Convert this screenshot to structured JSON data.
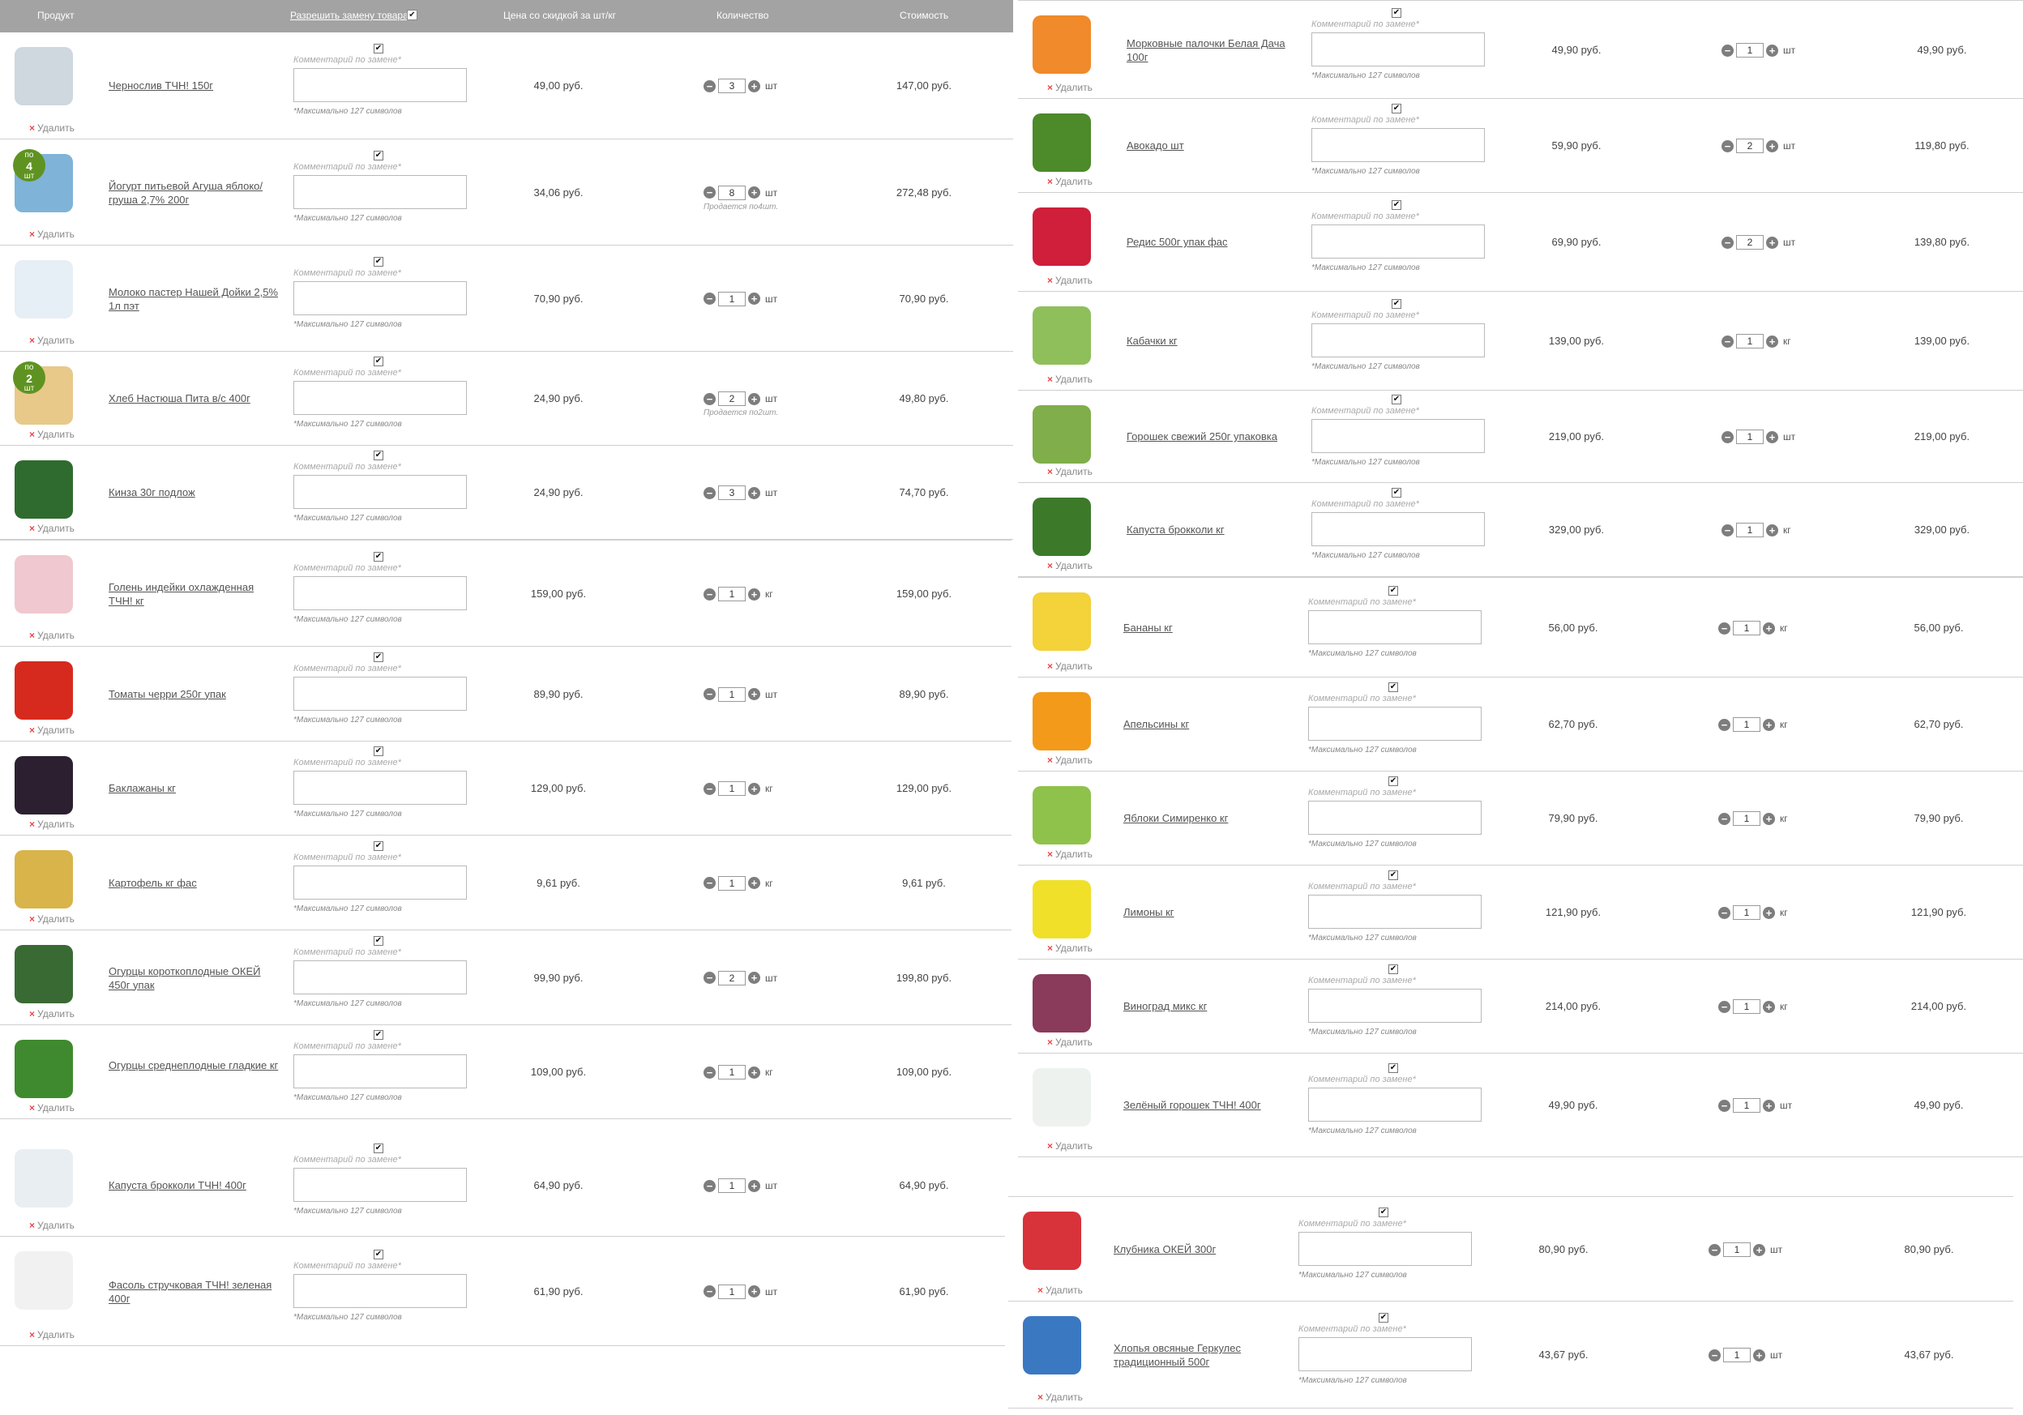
{
  "header": {
    "product": "Продукт",
    "allow_replacement": "Разрешить замену товара",
    "price": "Цена со скидкой за шт/кг",
    "quantity": "Количество",
    "cost": "Стоимость"
  },
  "labels": {
    "delete": "Удалить",
    "comment": "Комментарий по замене*",
    "max_chars": "*Максимально 127 символов",
    "check": "✔",
    "minus": "−",
    "plus": "+"
  },
  "colors": {
    "header_bg": "#a3a3a3",
    "badge": "#5f9321",
    "delete_x": "#e44444"
  },
  "items": [
    {
      "name": "Чернослив ТЧН! 150г",
      "price": "49,00 руб.",
      "qty": "3",
      "unit": "шт",
      "cost": "147,00 руб.",
      "icon": "prunes-bag-icon",
      "color": "#cfd7df"
    },
    {
      "name": "Йогурт питьевой Агуша яблоко/ груша 2,7% 200г",
      "price": "34,06 руб.",
      "qty": "8",
      "unit": "шт",
      "cost": "272,48 руб.",
      "badge_top": "по",
      "badge_num": "4",
      "badge_bottom": "шт",
      "note": "Продается по4шт.",
      "icon": "yogurt-bottle-icon",
      "color": "#7fb3d8"
    },
    {
      "name": "Молоко пастер Нашей Дойки 2,5% 1л пэт",
      "price": "70,90 руб.",
      "qty": "1",
      "unit": "шт",
      "cost": "70,90 руб.",
      "icon": "milk-bottle-icon",
      "color": "#e6eef6"
    },
    {
      "name": "Хлеб Настюша Пита в/с 400г",
      "price": "24,90 руб.",
      "qty": "2",
      "unit": "шт",
      "cost": "49,80 руб.",
      "badge_top": "по",
      "badge_num": "2",
      "badge_bottom": "шт",
      "note": "Продается по2шт.",
      "icon": "pita-bread-icon",
      "color": "#e8c98a"
    },
    {
      "name": "Кинза 30г подлож",
      "price": "24,90 руб.",
      "qty": "3",
      "unit": "шт",
      "cost": "74,70 руб.",
      "icon": "cilantro-tray-icon",
      "color": "#2f6b2f"
    },
    {
      "name": "Голень индейки охлажденная ТЧН! кг",
      "price": "159,00 руб.",
      "qty": "1",
      "unit": "кг",
      "cost": "159,00 руб.",
      "icon": "turkey-pack-icon",
      "color": "#f0c8cf"
    },
    {
      "name": "Томаты черри 250г упак",
      "price": "89,90 руб.",
      "qty": "1",
      "unit": "шт",
      "cost": "89,90 руб.",
      "icon": "cherry-tomato-icon",
      "color": "#d62a1e"
    },
    {
      "name": "Баклажаны кг",
      "price": "129,00 руб.",
      "qty": "1",
      "unit": "кг",
      "cost": "129,00 руб.",
      "icon": "eggplant-icon",
      "color": "#2c2030"
    },
    {
      "name": "Картофель кг фас",
      "price": "9,61 руб.",
      "qty": "1",
      "unit": "кг",
      "cost": "9,61 руб.",
      "icon": "potato-icon",
      "color": "#d9b44a"
    },
    {
      "name": "Огурцы короткоплодные ОКЕЙ 450г упак",
      "price": "99,90 руб.",
      "qty": "2",
      "unit": "шт",
      "cost": "199,80 руб.",
      "icon": "cucumber-pack-icon",
      "color": "#3a6a34"
    },
    {
      "name": "Огурцы среднеплодные гладкие кг",
      "price": "109,00 руб.",
      "qty": "1",
      "unit": "кг",
      "cost": "109,00 руб.",
      "icon": "cucumber-icon",
      "color": "#3f8a2e"
    },
    {
      "name": "Капуста брокколи ТЧН! 400г",
      "price": "64,90 руб.",
      "qty": "1",
      "unit": "шт",
      "cost": "64,90 руб.",
      "icon": "frozen-broccoli-bag-icon",
      "color": "#e9eef2"
    },
    {
      "name": "Фасоль стручковая ТЧН! зеленая 400г",
      "price": "61,90 руб.",
      "qty": "1",
      "unit": "шт",
      "cost": "61,90 руб.",
      "icon": "frozen-beans-bag-icon",
      "color": "#f1f1f1"
    },
    {
      "name": "Морковные палочки Белая Дача 100г",
      "price": "49,90 руб.",
      "qty": "1",
      "unit": "шт",
      "cost": "49,90 руб.",
      "icon": "carrot-sticks-icon",
      "color": "#f08a2a"
    },
    {
      "name": "Авокадо шт",
      "price": "59,90 руб.",
      "qty": "2",
      "unit": "шт",
      "cost": "119,80 руб.",
      "icon": "avocado-icon",
      "color": "#4d8a2a"
    },
    {
      "name": "Редис 500г упак фас",
      "price": "69,90 руб.",
      "qty": "2",
      "unit": "шт",
      "cost": "139,80 руб.",
      "icon": "radish-icon",
      "color": "#cf1f3a"
    },
    {
      "name": "Кабачки кг",
      "price": "139,00 руб.",
      "qty": "1",
      "unit": "кг",
      "cost": "139,00 руб.",
      "icon": "zucchini-icon",
      "color": "#8fbf5a"
    },
    {
      "name": "Горошек свежий 250г упаковка",
      "price": "219,00 руб.",
      "qty": "1",
      "unit": "шт",
      "cost": "219,00 руб.",
      "icon": "pea-pods-icon",
      "color": "#7fae4a"
    },
    {
      "name": "Капуста брокколи кг",
      "price": "329,00 руб.",
      "qty": "1",
      "unit": "кг",
      "cost": "329,00 руб.",
      "icon": "broccoli-icon",
      "color": "#3c7a2a"
    },
    {
      "name": "Бананы кг",
      "price": "56,00 руб.",
      "qty": "1",
      "unit": "кг",
      "cost": "56,00 руб.",
      "icon": "banana-icon",
      "color": "#f3d23a"
    },
    {
      "name": "Апельсины кг",
      "price": "62,70 руб.",
      "qty": "1",
      "unit": "кг",
      "cost": "62,70 руб.",
      "icon": "orange-icon",
      "color": "#f39a1a"
    },
    {
      "name": "Яблоки Симиренко кг",
      "price": "79,90 руб.",
      "qty": "1",
      "unit": "кг",
      "cost": "79,90 руб.",
      "icon": "green-apple-icon",
      "color": "#8fc24a"
    },
    {
      "name": "Лимоны кг",
      "price": "121,90 руб.",
      "qty": "1",
      "unit": "кг",
      "cost": "121,90 руб.",
      "icon": "lemon-icon",
      "color": "#f0e02a"
    },
    {
      "name": "Виноград микс кг",
      "price": "214,00 руб.",
      "qty": "1",
      "unit": "кг",
      "cost": "214,00 руб.",
      "icon": "grapes-icon",
      "color": "#8a3a5a"
    },
    {
      "name": "Зелёный горошек ТЧН! 400г",
      "price": "49,90 руб.",
      "qty": "1",
      "unit": "шт",
      "cost": "49,90 руб.",
      "icon": "frozen-peas-bag-icon",
      "color": "#eef2ee"
    },
    {
      "name": "Клубника ОКЕЙ 300г",
      "price": "80,90 руб.",
      "qty": "1",
      "unit": "шт",
      "cost": "80,90 руб.",
      "icon": "strawberry-bag-icon",
      "color": "#d8323a"
    },
    {
      "name": "Хлопья овсяные Геркулес традиционный 500г",
      "price": "43,67 руб.",
      "qty": "1",
      "unit": "шт",
      "cost": "43,67 руб.",
      "icon": "oat-flakes-box-icon",
      "color": "#3a78c2"
    }
  ]
}
